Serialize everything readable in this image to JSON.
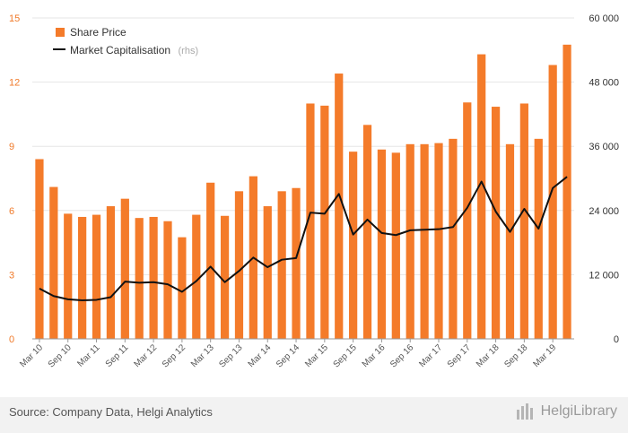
{
  "chart_data": {
    "type": "bar+line",
    "categories": [
      "Mar 10",
      "Jun 10",
      "Sep 10",
      "Dec 10",
      "Mar 11",
      "Jun 11",
      "Sep 11",
      "Dec 11",
      "Mar 12",
      "Jun 12",
      "Sep 12",
      "Dec 12",
      "Mar 13",
      "Jun 13",
      "Sep 13",
      "Dec 13",
      "Mar 14",
      "Jun 14",
      "Sep 14",
      "Dec 14",
      "Mar 15",
      "Jun 15",
      "Sep 15",
      "Dec 15",
      "Mar 16",
      "Jun 16",
      "Sep 16",
      "Dec 16",
      "Mar 17",
      "Jun 17",
      "Sep 17",
      "Dec 17",
      "Mar 18",
      "Jun 18",
      "Sep 18",
      "Dec 18",
      "Mar 19",
      "Jun 19"
    ],
    "x_tick_labels": [
      "Mar 10",
      "Sep 10",
      "Mar 11",
      "Sep 11",
      "Mar 12",
      "Sep 12",
      "Mar 13",
      "Sep 13",
      "Mar 14",
      "Sep 14",
      "Mar 15",
      "Sep 15",
      "Mar 16",
      "Sep 16",
      "Mar 17",
      "Sep 17",
      "Mar 18",
      "Sep 18",
      "Mar 19"
    ],
    "series": [
      {
        "name": "Share Price",
        "type": "bar",
        "axis": "left",
        "color": "#f47b2a",
        "values": [
          8.4,
          7.1,
          5.85,
          5.7,
          5.8,
          6.2,
          6.55,
          5.65,
          5.7,
          5.5,
          4.75,
          5.8,
          7.3,
          5.75,
          6.9,
          7.6,
          6.2,
          6.9,
          7.05,
          11.0,
          10.9,
          12.4,
          8.75,
          10.0,
          8.85,
          8.7,
          9.1,
          9.1,
          9.15,
          9.35,
          11.05,
          13.3,
          10.85,
          9.1,
          11.0,
          9.35,
          12.8,
          13.75
        ]
      },
      {
        "name": "Market Capitalisation",
        "type": "line",
        "axis": "right",
        "color": "#111111",
        "values": [
          9400,
          8000,
          7400,
          7200,
          7300,
          7800,
          10700,
          10500,
          10600,
          10200,
          8800,
          10800,
          13500,
          10600,
          12700,
          15200,
          13400,
          14800,
          15100,
          23600,
          23400,
          27100,
          19500,
          22300,
          19800,
          19400,
          20300,
          20400,
          20500,
          20900,
          24500,
          29400,
          23800,
          20000,
          24300,
          20600,
          28200,
          30300
        ]
      }
    ],
    "legend": [
      {
        "label": "Share Price",
        "note": ""
      },
      {
        "label": "Market Capitalisation",
        "note": "(rhs)"
      }
    ],
    "legend_position": "top-left",
    "left_axis": {
      "min": 0,
      "max": 15,
      "ticks": [
        "0",
        "3",
        "6",
        "9",
        "12",
        "15"
      ]
    },
    "right_axis": {
      "min": 0,
      "max": 60000,
      "ticks": [
        "0",
        "12 000",
        "24 000",
        "36 000",
        "48 000",
        "60 000"
      ]
    },
    "grid": true
  },
  "footer": {
    "source": "Source: Company Data, Helgi Analytics",
    "logo_text": "HelgiLibrary"
  },
  "colors": {
    "bar": "#f47b2a",
    "line": "#111111",
    "grid": "#e6e6e6",
    "left_tick": "#f07a2a"
  }
}
